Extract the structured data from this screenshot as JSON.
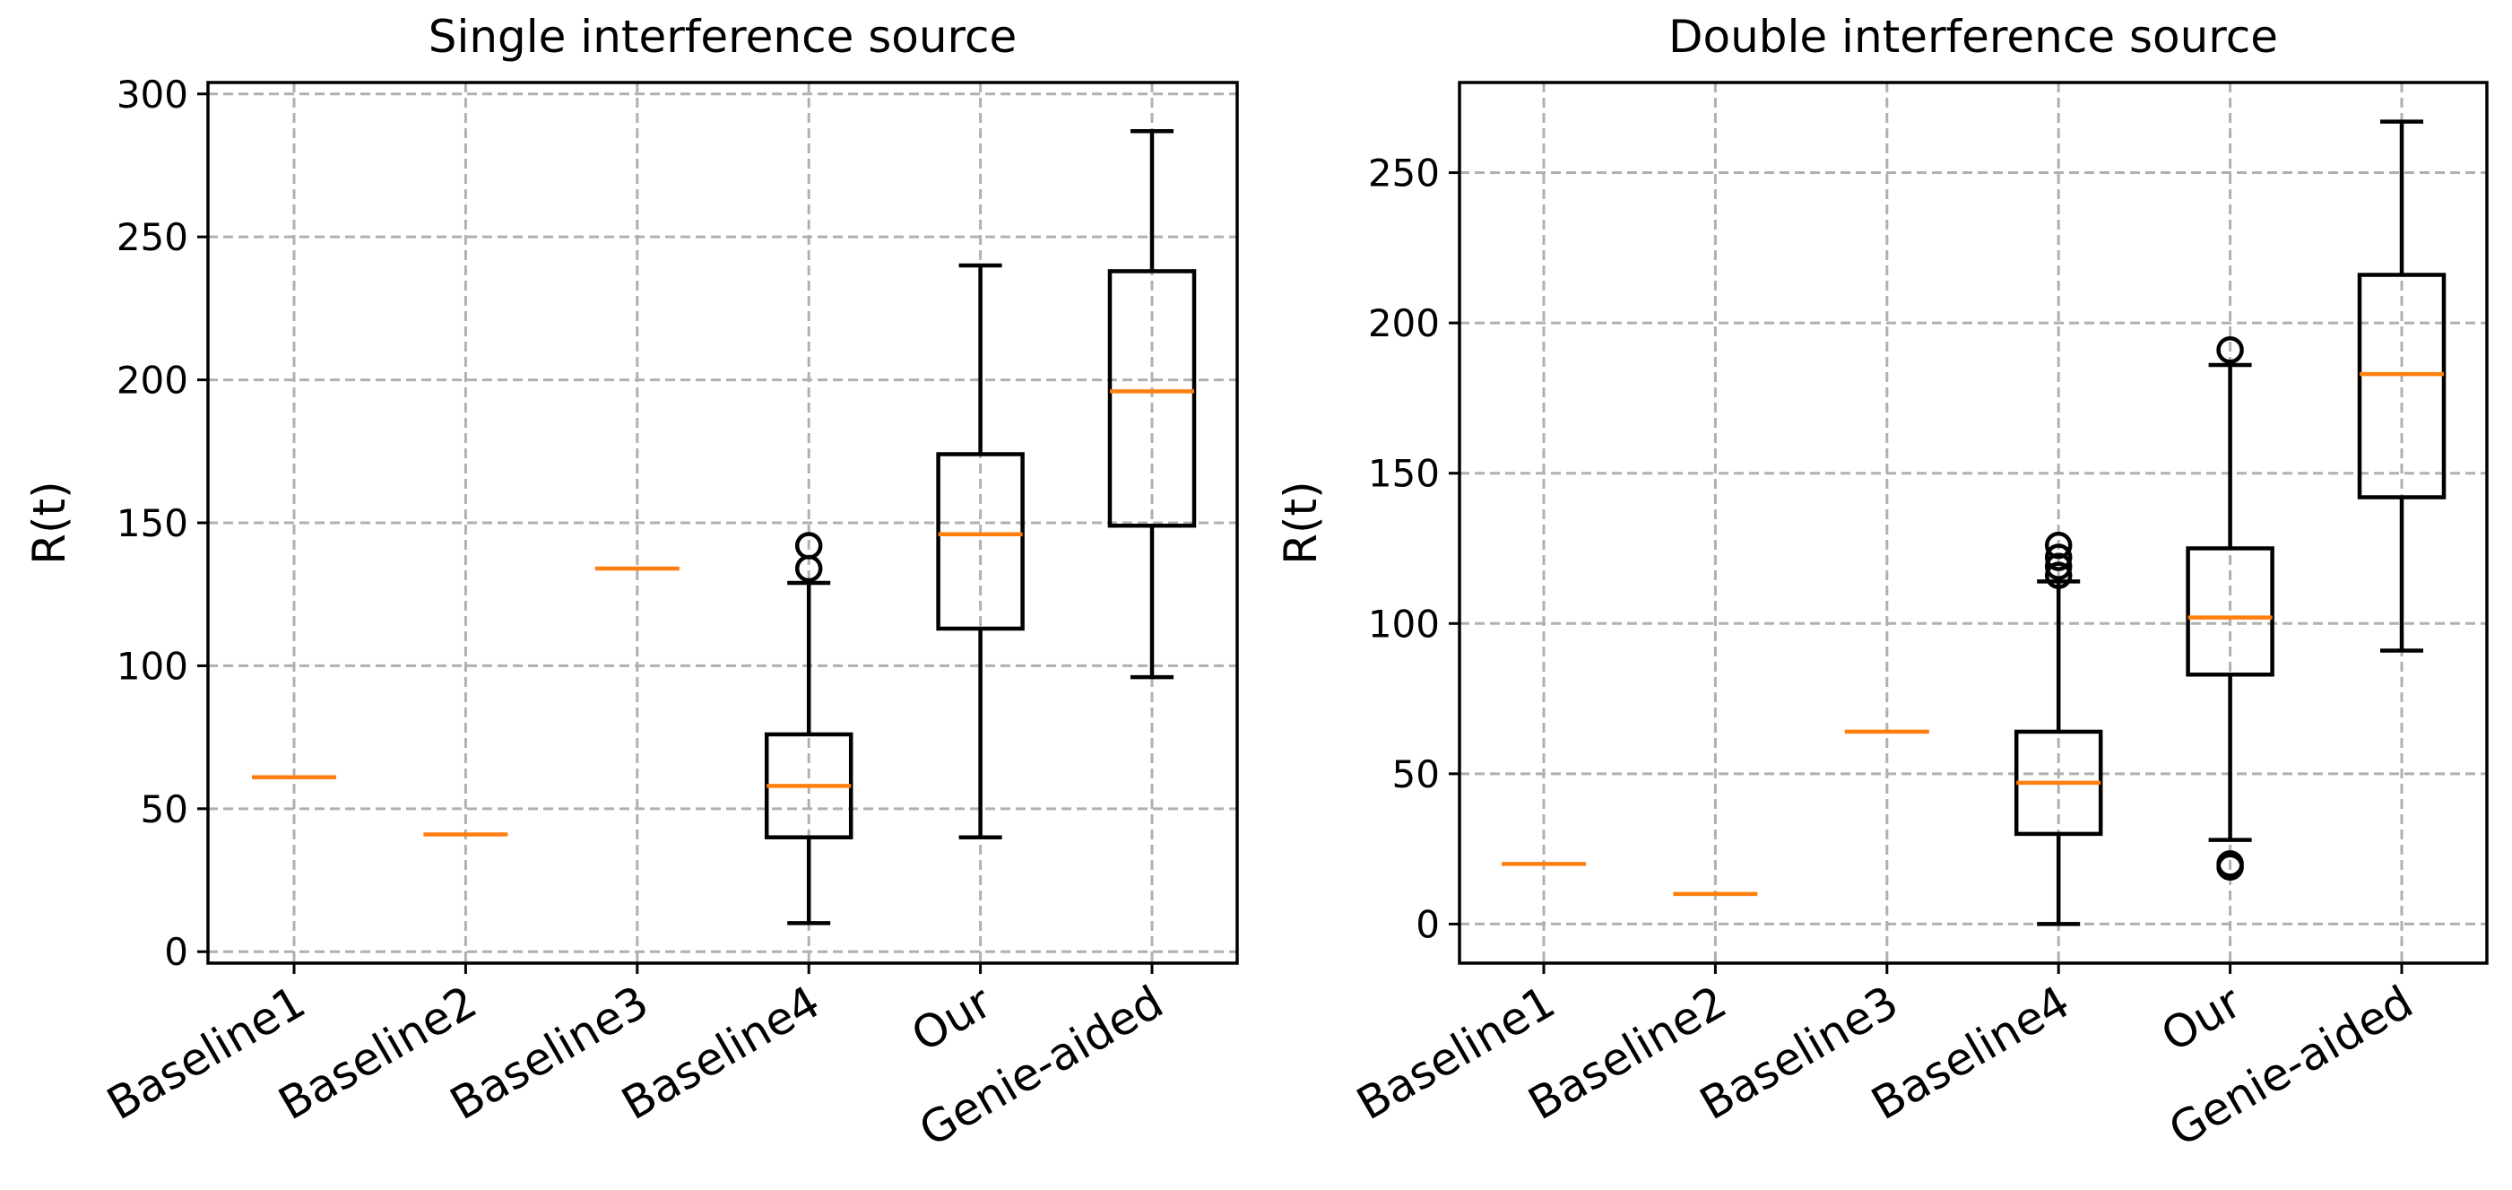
{
  "chart_data": [
    {
      "type": "box",
      "title": "Single interference source",
      "xlabel": "",
      "ylabel": "R(t)",
      "ylim": [
        -4,
        304
      ],
      "yticks": [
        0,
        50,
        100,
        150,
        200,
        250,
        300
      ],
      "grid": true,
      "categories": [
        "Baseline1",
        "Baseline2",
        "Baseline3",
        "Baseline4",
        "Our",
        "Genie-aided"
      ],
      "boxes": [
        {
          "min": 61,
          "q1": 61,
          "median": 61,
          "q3": 61,
          "max": 61,
          "fliers": []
        },
        {
          "min": 41,
          "q1": 41,
          "median": 41,
          "q3": 41,
          "max": 41,
          "fliers": []
        },
        {
          "min": 134,
          "q1": 134,
          "median": 134,
          "q3": 134,
          "max": 134,
          "fliers": []
        },
        {
          "min": 10,
          "q1": 40,
          "median": 58,
          "q3": 76,
          "max": 129,
          "fliers": [
            134,
            142
          ]
        },
        {
          "min": 40,
          "q1": 113,
          "median": 146,
          "q3": 174,
          "max": 240,
          "fliers": []
        },
        {
          "min": 96,
          "q1": 149,
          "median": 196,
          "q3": 238,
          "max": 287,
          "fliers": []
        }
      ]
    },
    {
      "type": "box",
      "title": "Double interference source",
      "xlabel": "",
      "ylabel": "R(t)",
      "ylim": [
        -13,
        280
      ],
      "yticks": [
        0,
        50,
        100,
        150,
        200,
        250
      ],
      "grid": true,
      "categories": [
        "Baseline1",
        "Baseline2",
        "Baseline3",
        "Baseline4",
        "Our",
        "Genie-aided"
      ],
      "boxes": [
        {
          "min": 20,
          "q1": 20,
          "median": 20,
          "q3": 20,
          "max": 20,
          "fliers": []
        },
        {
          "min": 10,
          "q1": 10,
          "median": 10,
          "q3": 10,
          "max": 10,
          "fliers": []
        },
        {
          "min": 64,
          "q1": 64,
          "median": 64,
          "q3": 64,
          "max": 64,
          "fliers": []
        },
        {
          "min": 0,
          "q1": 30,
          "median": 47,
          "q3": 64,
          "max": 114,
          "fliers": [
            116,
            119,
            122,
            126
          ]
        },
        {
          "min": 28,
          "q1": 83,
          "median": 102,
          "q3": 125,
          "max": 186,
          "fliers": [
            19,
            20,
            191
          ]
        },
        {
          "min": 91,
          "q1": 142,
          "median": 183,
          "q3": 216,
          "max": 267,
          "fliers": []
        }
      ]
    }
  ]
}
